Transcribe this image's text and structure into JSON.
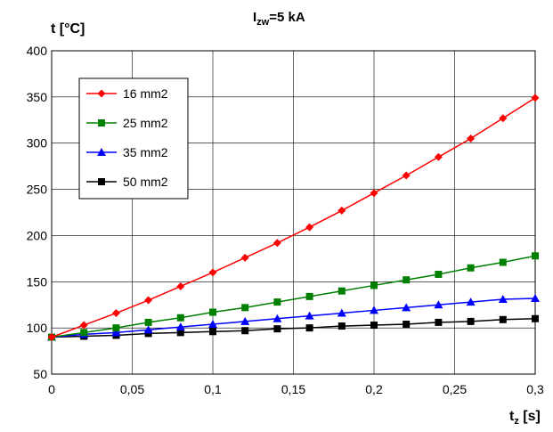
{
  "chart_data": {
    "type": "line",
    "title_main": "I",
    "title_sub": "zw",
    "title_rest": "=5 kA",
    "ylabel": "t [°C]",
    "xlabel_main": "t",
    "xlabel_sub": "z",
    "xlabel_rest": " [s]",
    "xlim": [
      0,
      0.3
    ],
    "ylim": [
      50,
      400
    ],
    "x_ticks": [
      0,
      0.05,
      0.1,
      0.15,
      0.2,
      0.25,
      0.3
    ],
    "x_tick_labels": [
      "0",
      "0,05",
      "0,1",
      "0,15",
      "0,2",
      "0,25",
      "0,3"
    ],
    "y_ticks": [
      50,
      100,
      150,
      200,
      250,
      300,
      350,
      400
    ],
    "y_tick_labels": [
      "50",
      "100",
      "150",
      "200",
      "250",
      "300",
      "350",
      "400"
    ],
    "grid": true,
    "legend_position": "top-left",
    "x": [
      0,
      0.02,
      0.04,
      0.06,
      0.08,
      0.1,
      0.12,
      0.14,
      0.16,
      0.18,
      0.2,
      0.22,
      0.24,
      0.26,
      0.28,
      0.3
    ],
    "series": [
      {
        "name": "16 mm2",
        "color": "#ff0000",
        "marker": "diamond",
        "values": [
          90,
          103,
          116,
          130,
          145,
          160,
          176,
          192,
          209,
          227,
          246,
          265,
          285,
          305,
          327,
          349
        ]
      },
      {
        "name": "25 mm2",
        "color": "#008000",
        "marker": "square",
        "values": [
          90,
          95,
          100,
          106,
          111,
          117,
          122,
          128,
          134,
          140,
          146,
          152,
          158,
          165,
          171,
          178
        ]
      },
      {
        "name": "35 mm2",
        "color": "#0000ff",
        "marker": "triangle",
        "values": [
          90,
          93,
          95,
          98,
          101,
          104,
          107,
          110,
          113,
          116,
          119,
          122,
          125,
          128,
          131,
          132
        ]
      },
      {
        "name": "50 mm2",
        "color": "#000000",
        "marker": "square",
        "values": [
          90,
          91,
          92,
          94,
          95,
          96,
          97,
          99,
          100,
          102,
          103,
          104,
          106,
          107,
          109,
          110
        ]
      }
    ]
  }
}
